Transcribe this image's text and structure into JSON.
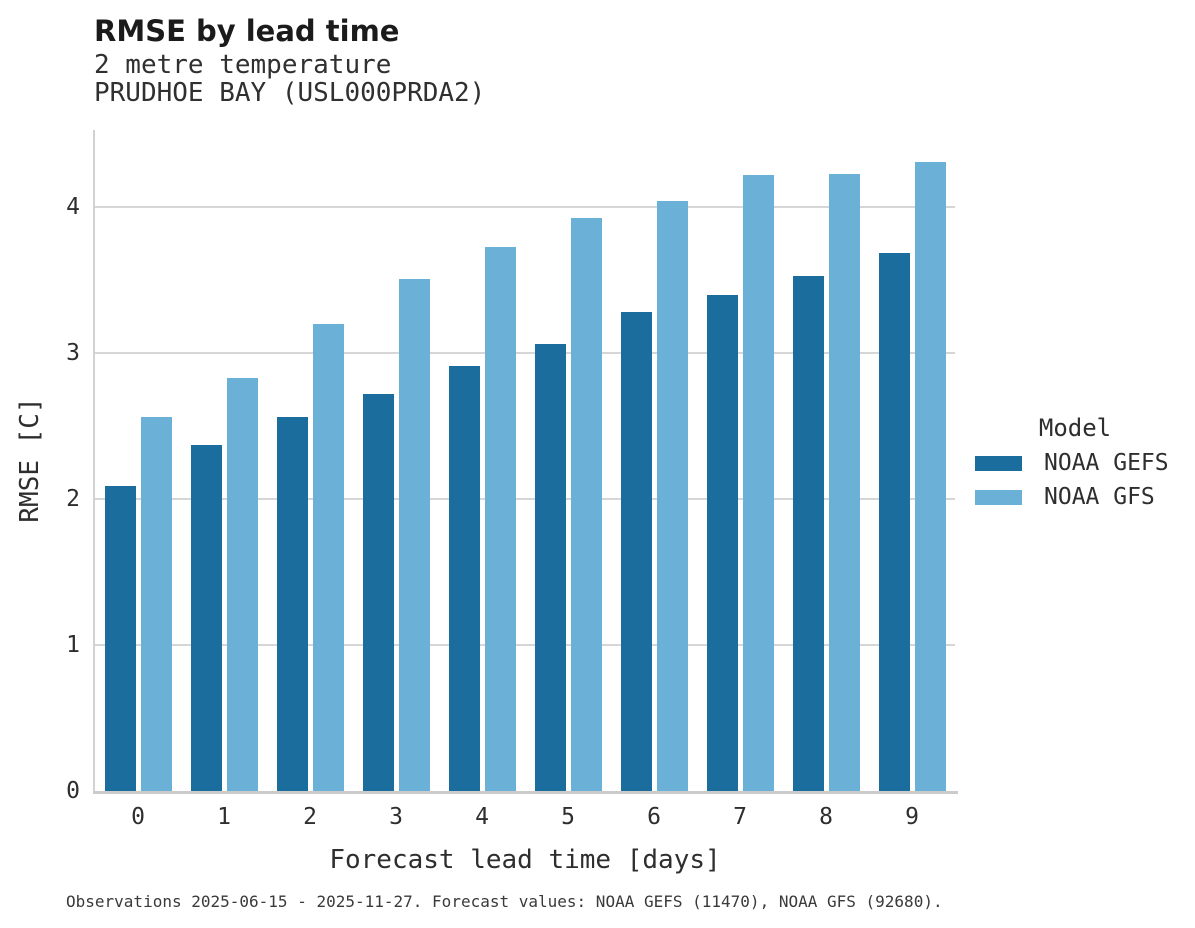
{
  "header": {
    "title": "RMSE by lead time",
    "subtitle_line1": "2 metre temperature",
    "subtitle_line2": "PRUDHOE BAY (USL000PRDA2)"
  },
  "chart_data": {
    "type": "bar",
    "title": "RMSE by lead time",
    "subtitle": [
      "2 metre temperature",
      "PRUDHOE BAY (USL000PRDA2)"
    ],
    "xlabel": "Forecast lead time [days]",
    "ylabel": "RMSE [C]",
    "categories": [
      "0",
      "1",
      "2",
      "3",
      "4",
      "5",
      "6",
      "7",
      "8",
      "9"
    ],
    "series": [
      {
        "name": "NOAA GEFS",
        "color": "#1a6d9c",
        "values": [
          2.09,
          2.37,
          2.56,
          2.72,
          2.91,
          3.06,
          3.28,
          3.4,
          3.53,
          3.69
        ]
      },
      {
        "name": "NOAA GFS",
        "color": "#6bb0d7",
        "values": [
          2.56,
          2.83,
          3.2,
          3.51,
          3.73,
          3.93,
          4.04,
          4.22,
          4.23,
          4.31
        ]
      }
    ],
    "yticks": [
      0,
      1,
      2,
      3,
      4
    ],
    "ylim": [
      0,
      4.53
    ],
    "grid": true,
    "legend_position": "right",
    "legend_title": "Model"
  },
  "legend": {
    "title": "Model",
    "items": [
      {
        "label": "NOAA GEFS",
        "color": "#1a6d9c"
      },
      {
        "label": "NOAA GFS",
        "color": "#6bb0d7"
      }
    ]
  },
  "caption": "Observations 2025-06-15 - 2025-11-27. Forecast values: NOAA GEFS (11470), NOAA GFS (92680).",
  "colors": {
    "series_dark": "#1a6d9c",
    "series_light": "#6bb0d7",
    "gridline": "#d6d6d6",
    "axis_line": "#cbcbcb"
  }
}
